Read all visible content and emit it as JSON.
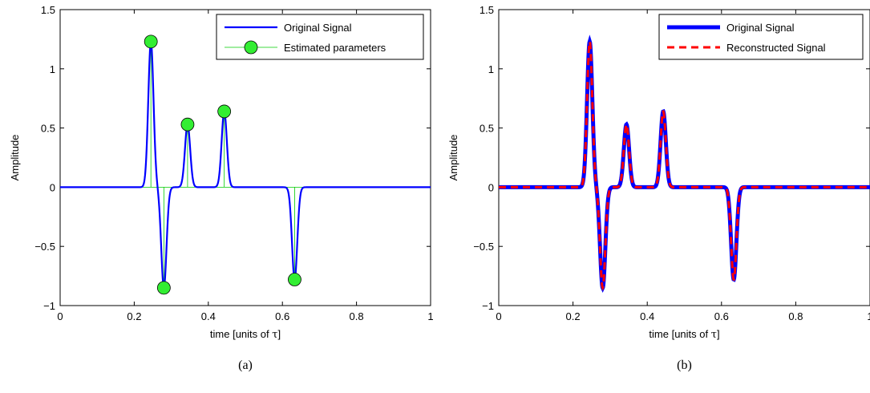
{
  "chart_data": [
    {
      "type": "line",
      "panel_caption": "(a)",
      "xlabel_prefix": "time [units of ",
      "xlabel_symbol": "τ",
      "xlabel_suffix": "]",
      "ylabel": "Amplitude",
      "xlim": [
        0,
        1
      ],
      "ylim": [
        -1,
        1.5
      ],
      "xticks": [
        0,
        0.2,
        0.4,
        0.6,
        0.8,
        1
      ],
      "xtick_labels": [
        "0",
        "0.2",
        "0.4",
        "0.6",
        "0.8",
        "1"
      ],
      "yticks": [
        -1,
        -0.5,
        0,
        0.5,
        1,
        1.5
      ],
      "ytick_labels": [
        "−1",
        "−0.5",
        "0",
        "0.5",
        "1",
        "1.5"
      ],
      "pulse_width": 0.01,
      "legend_position": "top-right",
      "series": [
        {
          "name": "Original Signal",
          "style": "line",
          "color": "#0000ff"
        },
        {
          "name": "Estimated parameters",
          "style": "stem",
          "color": "#00cc00",
          "marker_color": "#33ee33"
        }
      ],
      "pulses": [
        {
          "t": 0.245,
          "a": 1.23
        },
        {
          "t": 0.28,
          "a": -0.85
        },
        {
          "t": 0.344,
          "a": 0.53
        },
        {
          "t": 0.443,
          "a": 0.64
        },
        {
          "t": 0.633,
          "a": -0.78
        }
      ]
    },
    {
      "type": "line",
      "panel_caption": "(b)",
      "xlabel_prefix": "time [units of ",
      "xlabel_symbol": "τ",
      "xlabel_suffix": "]",
      "ylabel": "Amplitude",
      "xlim": [
        0,
        1
      ],
      "ylim": [
        -1,
        1.5
      ],
      "xticks": [
        0,
        0.2,
        0.4,
        0.6,
        0.8,
        1
      ],
      "xtick_labels": [
        "0",
        "0.2",
        "0.4",
        "0.6",
        "0.8",
        "1"
      ],
      "yticks": [
        -1,
        -0.5,
        0,
        0.5,
        1,
        1.5
      ],
      "ytick_labels": [
        "−1",
        "−0.5",
        "0",
        "0.5",
        "1",
        "1.5"
      ],
      "pulse_width": 0.01,
      "legend_position": "top-right",
      "series": [
        {
          "name": "Original Signal",
          "style": "line",
          "color": "#0000ff"
        },
        {
          "name": "Reconstructed Signal",
          "style": "dashed",
          "color": "#ff0000"
        }
      ],
      "pulses": [
        {
          "t": 0.245,
          "a": 1.23
        },
        {
          "t": 0.28,
          "a": -0.85
        },
        {
          "t": 0.344,
          "a": 0.53
        },
        {
          "t": 0.443,
          "a": 0.64
        },
        {
          "t": 0.633,
          "a": -0.78
        }
      ]
    }
  ]
}
